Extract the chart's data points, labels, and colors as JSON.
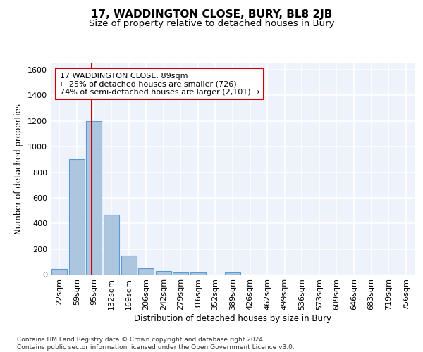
{
  "title": "17, WADDINGTON CLOSE, BURY, BL8 2JB",
  "subtitle": "Size of property relative to detached houses in Bury",
  "xlabel": "Distribution of detached houses by size in Bury",
  "ylabel": "Number of detached properties",
  "footer": "Contains HM Land Registry data © Crown copyright and database right 2024.\nContains public sector information licensed under the Open Government Licence v3.0.",
  "categories": [
    "22sqm",
    "59sqm",
    "95sqm",
    "132sqm",
    "169sqm",
    "206sqm",
    "242sqm",
    "279sqm",
    "316sqm",
    "352sqm",
    "389sqm",
    "426sqm",
    "462sqm",
    "499sqm",
    "536sqm",
    "573sqm",
    "609sqm",
    "646sqm",
    "683sqm",
    "719sqm",
    "756sqm"
  ],
  "values": [
    45,
    900,
    1200,
    470,
    150,
    47,
    30,
    15,
    15,
    0,
    18,
    0,
    0,
    0,
    0,
    0,
    0,
    0,
    0,
    0,
    0
  ],
  "bar_color": "#adc6e0",
  "bar_edge_color": "#5b9bd5",
  "vline_color": "#cc0000",
  "annotation_text": "17 WADDINGTON CLOSE: 89sqm\n← 25% of detached houses are smaller (726)\n74% of semi-detached houses are larger (2,101) →",
  "annotation_box_color": "#cc0000",
  "ylim": [
    0,
    1650
  ],
  "yticks": [
    0,
    200,
    400,
    600,
    800,
    1000,
    1200,
    1400,
    1600
  ],
  "background_color": "#eef2fb",
  "grid_color": "#ffffff",
  "title_fontsize": 11,
  "subtitle_fontsize": 9.5,
  "axis_label_fontsize": 8.5,
  "tick_fontsize": 8,
  "footer_fontsize": 6.5
}
